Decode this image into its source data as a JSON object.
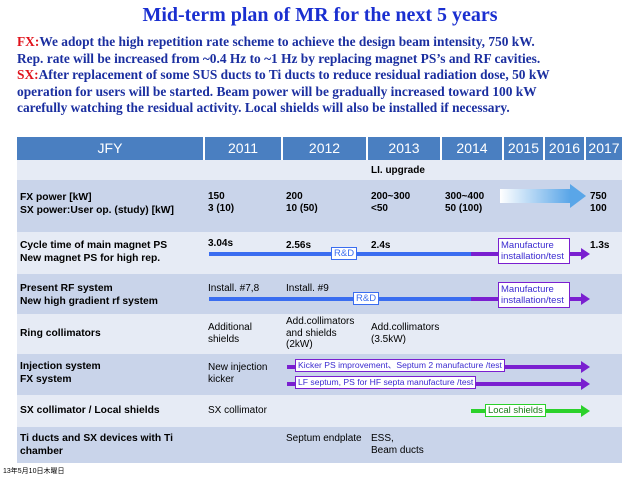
{
  "title": "Mid-term plan of MR for the next 5 years",
  "intro": {
    "fx_tag": "FX:",
    "fx_line1": "We adopt the high repetition rate scheme to achieve the design beam intensity, 750 kW.",
    "fx_line2": "Rep. rate will be increased from ~0.4 Hz to ~1 Hz by replacing magnet PS’s and RF cavities.",
    "sx_tag": "SX:",
    "sx_line1": "After replacement of some SUS ducts to Ti ducts to reduce residual radiation dose, 50 kW",
    "sx_line2": "operation for users will be started. Beam power will be gradually increased toward 100 kW",
    "sx_line3": "carefully watching the residual activity. Local shields will also be installed if necessary."
  },
  "header": {
    "jfy": "JFY",
    "years": [
      "2011",
      "2012",
      "2013",
      "2014",
      "2015",
      "2016",
      "2017"
    ]
  },
  "rows": {
    "li_upgrade": "LI. upgrade",
    "power": {
      "label1": "FX power [kW]",
      "label2": "SX power:User op. (study) [kW]",
      "y2011": "150\n3 (10)",
      "y2012": "200\n10 (50)",
      "y2013": "200~300\n<50",
      "y2014": "300~400\n50 (100)",
      "y2017": "750\n100"
    },
    "cycle": {
      "label1": "Cycle time of main magnet PS",
      "label2": "New magnet PS for high rep.",
      "v2011": "3.04s",
      "v2012": "2.56s",
      "v2013": "2.4s",
      "v2017": "1.3s",
      "rd": "R&D",
      "manufacture": "Manufacture\ninstallation/test"
    },
    "rf": {
      "label1": "Present RF system",
      "label2": "New high gradient rf system",
      "v2011": "Install. #7,8",
      "v2012": "Install. #9",
      "rd": "R&D",
      "manufacture": "Manufacture\ninstallation/test"
    },
    "collimators": {
      "label": "Ring collimators",
      "v2011": "Additional\nshields",
      "v2012": "Add.collimators\nand shields\n(2kW)",
      "v2013": "Add.collimators\n(3.5kW)"
    },
    "injection": {
      "label1": "Injection system",
      "label2": "FX system",
      "v2011": "New injection\nkicker",
      "kicker": "Kicker PS improvement、Septum 2 manufacture /test",
      "septum": "LF septum, PS for HF septa manufacture /test"
    },
    "sx": {
      "label": "SX collimator / Local shields",
      "v2011": "SX collimator",
      "local": "Local shields"
    },
    "ti": {
      "label1": "Ti ducts and SX devices with Ti",
      "label2": "chamber",
      "v2012": "Septum endplate",
      "v2013": "ESS,\nBeam ducts"
    }
  },
  "footer": "13年5月10日木曜日",
  "colors": {
    "title": "#1a2fd0",
    "tag": "#e0121b",
    "header": "#4a7fc1",
    "row_dark": "#c9d4ea",
    "row_light": "#e6ebf5",
    "blue_arrow": "#3a6df0",
    "purple": "#7a1fd0",
    "green": "#2bd12b"
  }
}
